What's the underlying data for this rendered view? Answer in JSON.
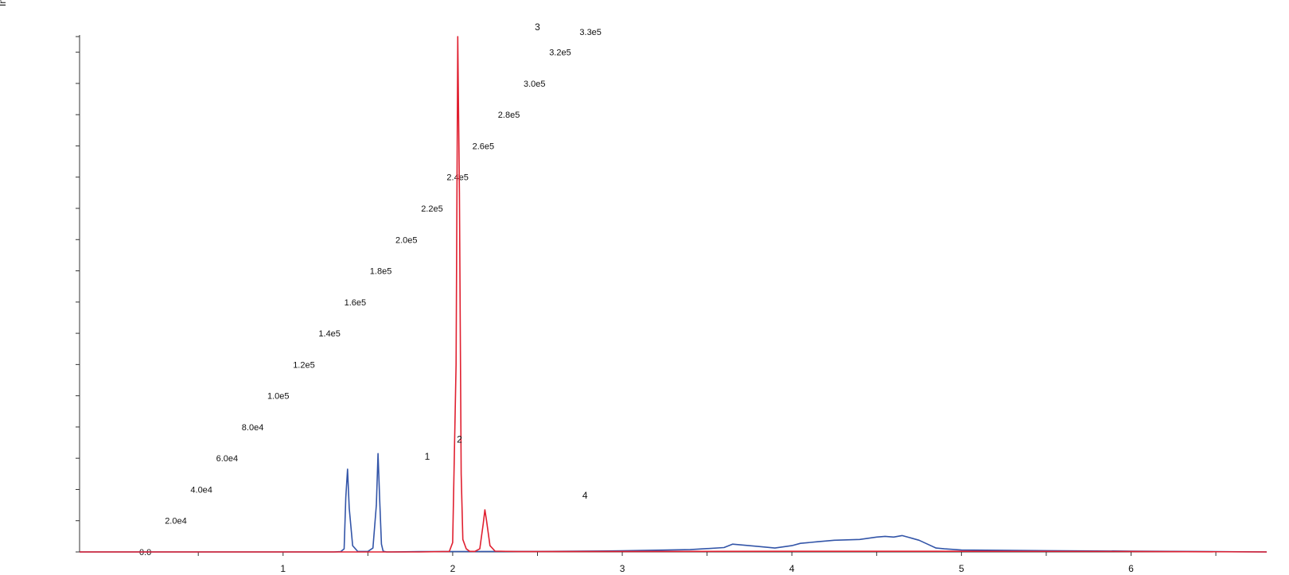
{
  "chart_data": {
    "type": "line",
    "ylabel": "In",
    "xlim": [
      -0.2,
      6.8
    ],
    "ylim": [
      0,
      330000
    ],
    "x_ticks": [
      1,
      2,
      3,
      4,
      5,
      6
    ],
    "x_tick_labels": [
      "1",
      "2",
      "3",
      "4",
      "5",
      "6"
    ],
    "y_tick_labels": [
      "0.0",
      "2.0e4",
      "4.0e4",
      "6.0e4",
      "8.0e4",
      "1.0e5",
      "1.2e5",
      "1.4e5",
      "1.6e5",
      "1.8e5",
      "2.0e5",
      "2.2e5",
      "2.4e5",
      "2.6e5",
      "2.8e5",
      "3.0e5",
      "3.2e5",
      "3.3e5"
    ],
    "y_ticks": [
      0,
      20000,
      40000,
      60000,
      80000,
      100000,
      120000,
      140000,
      160000,
      180000,
      200000,
      220000,
      240000,
      260000,
      280000,
      300000,
      320000,
      330000
    ],
    "series": [
      {
        "color": "#3355a8",
        "x": [
          -0.2,
          1.3,
          1.34,
          1.36,
          1.37,
          1.38,
          1.39,
          1.41,
          1.44,
          1.5,
          1.53,
          1.55,
          1.56,
          1.57,
          1.58,
          1.59,
          1.61,
          1.64,
          1.8,
          2.5,
          3.0,
          3.4,
          3.6,
          3.65,
          3.8,
          3.9,
          4.0,
          4.05,
          4.15,
          4.25,
          4.4,
          4.5,
          4.55,
          4.6,
          4.65,
          4.7,
          4.75,
          4.8,
          4.85,
          4.9,
          5.0,
          5.5,
          6.0,
          6.8
        ],
        "y": [
          0,
          0,
          200,
          2000,
          35000,
          53000,
          28000,
          4000,
          300,
          300,
          2500,
          30000,
          63000,
          32000,
          5000,
          500,
          0,
          0,
          200,
          300,
          700,
          1500,
          2800,
          5000,
          3500,
          2500,
          4000,
          5500,
          6500,
          7500,
          8000,
          9500,
          10000,
          9500,
          10500,
          9000,
          7500,
          5000,
          2500,
          2000,
          1200,
          800,
          500,
          0
        ]
      },
      {
        "color": "#e02030",
        "x": [
          -0.2,
          1.8,
          1.98,
          2.0,
          2.02,
          2.03,
          2.04,
          2.05,
          2.06,
          2.08,
          2.1,
          2.13,
          2.16,
          2.18,
          2.19,
          2.2,
          2.22,
          2.25,
          2.4,
          3.0,
          4.0,
          5.0,
          6.0,
          6.8
        ],
        "y": [
          0,
          0,
          300,
          6000,
          120000,
          330000,
          230000,
          50000,
          8000,
          2000,
          400,
          300,
          2000,
          18000,
          27000,
          20000,
          4000,
          500,
          200,
          300,
          400,
          400,
          300,
          0
        ]
      }
    ],
    "annotations": [
      {
        "text": "1",
        "x": 1.85,
        "y": 59000
      },
      {
        "text": "2",
        "x": 2.04,
        "y": 70000
      },
      {
        "text": "3",
        "x": 2.5,
        "y": 334000
      },
      {
        "text": "4",
        "x": 2.78,
        "y": 34000
      }
    ]
  }
}
